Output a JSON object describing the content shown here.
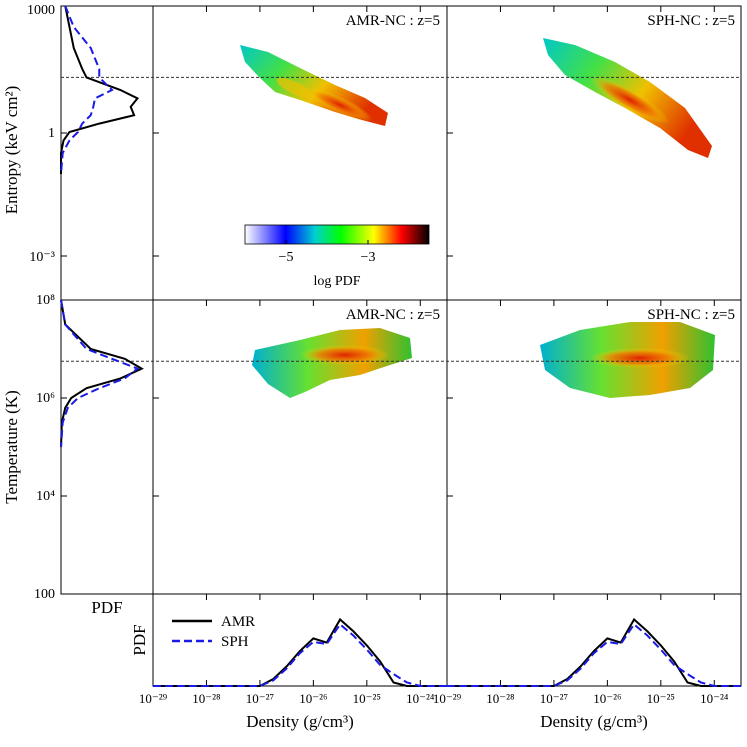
{
  "panels": {
    "entropy_amr": {
      "title": "AMR-NC : z=5"
    },
    "entropy_sph": {
      "title": "SPH-NC : z=5"
    },
    "temp_amr": {
      "title": "AMR-NC : z=5"
    },
    "temp_sph": {
      "title": "SPH-NC : z=5"
    }
  },
  "axes": {
    "entropy_ylabel": "Entropy (keV cm²)",
    "temperature_ylabel": "Temperature (K)",
    "xlabel": "Density (g/cm³)",
    "pdf_label": "PDF",
    "entropy_ticks": [
      "1000",
      "1",
      "10⁻³"
    ],
    "temperature_ticks": [
      "10⁸",
      "10⁶",
      "10⁴",
      "100"
    ],
    "density_ticks": [
      "10⁻²⁹",
      "10⁻²⁸",
      "10⁻²⁷",
      "10⁻²⁶",
      "10⁻²⁵",
      "10⁻²⁴"
    ]
  },
  "colorbar": {
    "label": "log PDF",
    "ticks": [
      "−5",
      "−3"
    ],
    "range": [
      -6.5,
      -2.0
    ],
    "colors": [
      "#ffffff",
      "#0000ff",
      "#00d0d0",
      "#00ff00",
      "#ffff00",
      "#ff0000",
      "#000000"
    ]
  },
  "legend": {
    "items": [
      {
        "name": "AMR",
        "color": "#000000",
        "style": "solid"
      },
      {
        "name": "SPH",
        "color": "#1a1ae6",
        "style": "dashed"
      }
    ]
  },
  "chart_data": {
    "type": "heatmap",
    "description_x": "log10 density (g/cm³)",
    "xlim": [
      -29,
      -23.5
    ],
    "entropy_ylim_log": [
      -4,
      3
    ],
    "temperature_ylim_log": [
      2,
      8
    ],
    "entropy_reference_log": 1.3,
    "temperature_reference_log": 6.75,
    "density_pdf": {
      "x": [
        -27.0,
        -26.75,
        -26.5,
        -26.25,
        -26.0,
        -25.75,
        -25.5,
        -25.25,
        -25.0,
        -24.75,
        -24.5,
        -24.25,
        -24.0
      ],
      "amr": [
        0.0,
        0.1,
        0.28,
        0.5,
        0.68,
        0.62,
        0.95,
        0.78,
        0.58,
        0.35,
        0.05,
        0.0,
        0.0
      ],
      "sph": [
        0.0,
        0.08,
        0.25,
        0.47,
        0.63,
        0.6,
        0.88,
        0.72,
        0.52,
        0.3,
        0.17,
        0.05,
        0.0
      ]
    },
    "entropy_pdf": {
      "y_log": [
        3.0,
        2.5,
        2.0,
        1.5,
        1.3,
        1.0,
        0.8,
        0.6,
        0.4,
        0.2,
        0.0,
        -0.2,
        -0.5,
        -1.0
      ],
      "amr": [
        0.05,
        0.1,
        0.15,
        0.25,
        0.3,
        0.7,
        0.9,
        0.82,
        0.86,
        0.45,
        0.1,
        0.03,
        0.0,
        0.0
      ],
      "sph": [
        0.05,
        0.15,
        0.35,
        0.45,
        0.45,
        0.6,
        0.4,
        0.38,
        0.35,
        0.25,
        0.2,
        0.1,
        0.02,
        0.0
      ]
    },
    "temperature_pdf": {
      "y_log": [
        8.0,
        7.5,
        7.0,
        6.8,
        6.6,
        6.4,
        6.2,
        6.0,
        5.8,
        5.5,
        5.0
      ],
      "amr": [
        0.0,
        0.05,
        0.35,
        0.75,
        0.95,
        0.7,
        0.3,
        0.12,
        0.05,
        0.01,
        0.0
      ],
      "sph": [
        0.0,
        0.05,
        0.3,
        0.6,
        0.9,
        0.75,
        0.45,
        0.2,
        0.08,
        0.02,
        0.0
      ]
    }
  }
}
